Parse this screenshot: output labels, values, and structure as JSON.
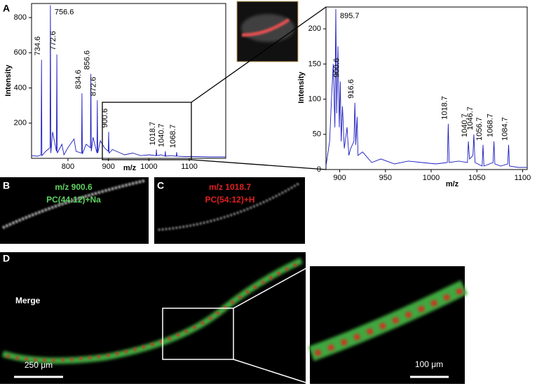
{
  "chart_data": [
    {
      "type": "line",
      "xlabel": "m/z",
      "ylabel": "Intensity",
      "xlim": [
        710,
        1190
      ],
      "xticks": [
        800,
        900,
        1000,
        1100
      ],
      "ylim": [
        0,
        880
      ],
      "yticks": [
        200,
        400,
        600,
        800
      ],
      "series": [
        {
          "color": "#1c1cc0",
          "x": [
            710,
            725,
            733.6,
            734.6,
            735.6,
            745,
            755.6,
            756.6,
            757.6,
            762,
            771.6,
            772.6,
            773.6,
            785,
            790,
            800,
            815,
            820,
            833.6,
            834.6,
            835.6,
            845,
            855.6,
            856.6,
            857.6,
            862,
            871.6,
            872.6,
            873.6,
            880,
            890,
            899.6,
            900.6,
            901.6,
            910,
            920,
            940,
            960,
            980,
            1000,
            1017.7,
            1018.7,
            1019.7,
            1030,
            1039.7,
            1040.7,
            1041.7,
            1055,
            1067.7,
            1068.7,
            1069.7,
            1090,
            1110,
            1150,
            1190
          ],
          "values": [
            15,
            12,
            20,
            560,
            15,
            40,
            60,
            870,
            30,
            150,
            40,
            590,
            30,
            80,
            20,
            60,
            110,
            40,
            30,
            370,
            25,
            80,
            60,
            480,
            40,
            120,
            30,
            330,
            30,
            100,
            60,
            40,
            150,
            30,
            50,
            40,
            20,
            30,
            15,
            20,
            15,
            50,
            15,
            20,
            12,
            40,
            12,
            15,
            12,
            35,
            12,
            10,
            10,
            8,
            8
          ]
        }
      ],
      "peak_labels": [
        734.6,
        756.6,
        772.6,
        834.6,
        856.6,
        872.6,
        900.6,
        1018.7,
        1040.7,
        1068.7
      ]
    },
    {
      "type": "line",
      "xlabel": "m/z",
      "ylabel": "Intensity",
      "xlim": [
        885,
        1105
      ],
      "xticks": [
        900,
        950,
        1000,
        1050,
        1100
      ],
      "ylim": [
        0,
        231
      ],
      "yticks": [
        0,
        50,
        100,
        150,
        200
      ],
      "series": [
        {
          "color": "#1c1cc0",
          "x": [
            885,
            889,
            891,
            893,
            894.7,
            895.7,
            896.7,
            898,
            899.6,
            900.6,
            901.6,
            903,
            905,
            908,
            910,
            912,
            915.6,
            916.6,
            917.6,
            919,
            920,
            925,
            935,
            945,
            960,
            975,
            990,
            1005,
            1017.7,
            1018.7,
            1019.7,
            1030,
            1039.7,
            1040.7,
            1042,
            1045.7,
            1046.7,
            1048,
            1055.7,
            1056.7,
            1057.7,
            1067.7,
            1068.7,
            1069.7,
            1076,
            1083.7,
            1084.7,
            1085.7,
            1095,
            1105
          ],
          "values": [
            5,
            40,
            100,
            150,
            60,
            228,
            80,
            175,
            60,
            125,
            40,
            90,
            30,
            60,
            20,
            30,
            40,
            95,
            35,
            75,
            20,
            25,
            10,
            15,
            8,
            12,
            10,
            8,
            10,
            65,
            10,
            12,
            10,
            40,
            15,
            20,
            50,
            10,
            5,
            35,
            5,
            10,
            40,
            8,
            5,
            8,
            35,
            5,
            3,
            3
          ]
        }
      ],
      "peak_labels": [
        895.7,
        900.6,
        916.6,
        1018.7,
        1040.7,
        1046.7,
        1056.7,
        1068.7,
        1084.7
      ]
    }
  ],
  "panel_labels": {
    "a": "A",
    "b": "B",
    "c": "C",
    "d": "D"
  },
  "images": {
    "b_mz": "m/z 900.6",
    "b_lipid": "PC(44:12)+Na",
    "c_mz": "m/z 1018.7",
    "c_lipid": "PC(54:12)+H",
    "d_label": "Merge",
    "d_scale": "250 μm",
    "d_zoom_scale": "100 μm"
  }
}
